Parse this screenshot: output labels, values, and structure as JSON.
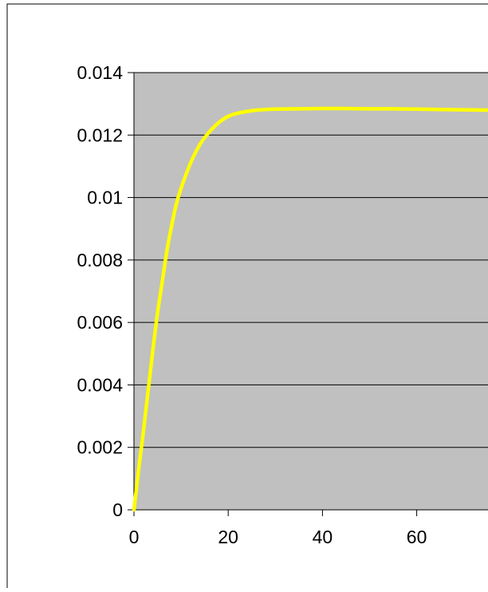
{
  "chart_data": {
    "type": "line",
    "title": "",
    "xlabel": "",
    "ylabel": "",
    "xlim": [
      0,
      75
    ],
    "ylim": [
      0,
      0.014
    ],
    "x_ticks": [
      0,
      20,
      40,
      60
    ],
    "x_tick_labels": [
      "0",
      "20",
      "40",
      "60"
    ],
    "y_ticks": [
      0,
      0.002,
      0.004,
      0.006,
      0.008,
      0.01,
      0.012,
      0.014
    ],
    "y_tick_labels": [
      "0",
      "0.002",
      "0.004",
      "0.006",
      "0.008",
      "0.01",
      "0.012",
      "0.014"
    ],
    "grid": "horizontal",
    "legend": "none",
    "plot_background": "#c0c0c0",
    "series": [
      {
        "color": "#ffff00",
        "x": [
          0,
          1,
          2,
          3,
          4,
          5,
          6,
          7,
          8,
          9,
          10,
          12,
          14,
          16,
          18,
          20,
          22,
          25,
          28,
          30,
          35,
          40,
          45,
          50,
          55,
          60,
          65,
          70,
          75
        ],
        "y": [
          0,
          0.0013,
          0.0025,
          0.0038,
          0.0051,
          0.0063,
          0.0073,
          0.0083,
          0.0091,
          0.0098,
          0.0103,
          0.0111,
          0.0117,
          0.0121,
          0.0124,
          0.0126,
          0.0127,
          0.01278,
          0.01282,
          0.01283,
          0.01284,
          0.01285,
          0.01285,
          0.01284,
          0.01284,
          0.01283,
          0.01282,
          0.01281,
          0.0128
        ]
      }
    ]
  }
}
